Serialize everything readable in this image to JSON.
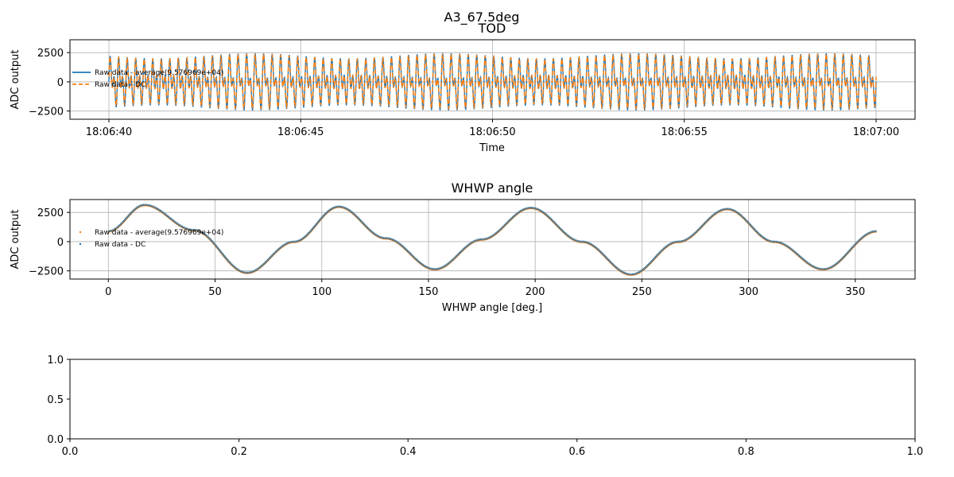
{
  "figure_title": "A3_67.5deg",
  "colors": {
    "series_blue": "#1f77b4",
    "series_orange": "#ff7f0e",
    "grid": "#b0b0b0"
  },
  "chart_data": [
    {
      "type": "line",
      "title": "TOD",
      "xlabel": "Time",
      "ylabel": "ADC output",
      "x_time_range": [
        "18:06:40",
        "18:07:00"
      ],
      "xticks": [
        "18:06:40",
        "18:06:45",
        "18:06:50",
        "18:06:55",
        "18:07:00"
      ],
      "ylim": [
        -3200,
        3600
      ],
      "yticks": [
        -2500,
        0,
        2500
      ],
      "grid": true,
      "legend_position": "center-left",
      "signal": {
        "amplitude": 2800,
        "cycles": 90,
        "envelope_cycles": 4,
        "envelope_depth": 0.35
      },
      "series": [
        {
          "name": "Raw data - average(9.576969e+04)",
          "style": "solid",
          "color": "#1f77b4"
        },
        {
          "name": "Raw data - DC",
          "style": "dashed",
          "color": "#ff7f0e"
        }
      ]
    },
    {
      "type": "scatter",
      "title": "WHWP angle",
      "xlabel": "WHWP angle [deg.]",
      "ylabel": "ADC output",
      "xlim": [
        -18,
        378
      ],
      "xticks": [
        0,
        50,
        100,
        150,
        200,
        250,
        300,
        350
      ],
      "ylim": [
        -3200,
        3600
      ],
      "yticks": [
        -2500,
        0,
        2500
      ],
      "grid": true,
      "legend_position": "center-left",
      "curve_points": [
        [
          0,
          900
        ],
        [
          17,
          3150
        ],
        [
          40,
          1000
        ],
        [
          65,
          -2650
        ],
        [
          87,
          0
        ],
        [
          108,
          3000
        ],
        [
          130,
          300
        ],
        [
          153,
          -2350
        ],
        [
          175,
          200
        ],
        [
          198,
          2900
        ],
        [
          222,
          0
        ],
        [
          245,
          -2800
        ],
        [
          267,
          0
        ],
        [
          290,
          2800
        ],
        [
          312,
          0
        ],
        [
          335,
          -2350
        ],
        [
          360,
          900
        ]
      ],
      "series": [
        {
          "name": "Raw data - average(9.576969e+04)",
          "color": "#ff7f0e"
        },
        {
          "name": "Raw data - DC",
          "color": "#1f77b4"
        }
      ]
    },
    {
      "type": "line",
      "title": "",
      "xlabel": "",
      "ylabel": "",
      "xlim": [
        0,
        1
      ],
      "ylim": [
        0,
        1
      ],
      "xticks": [
        "0.0",
        "0.2",
        "0.4",
        "0.6",
        "0.8",
        "1.0"
      ],
      "yticks": [
        "0.0",
        "0.5",
        "1.0"
      ],
      "grid": false,
      "series": []
    }
  ]
}
